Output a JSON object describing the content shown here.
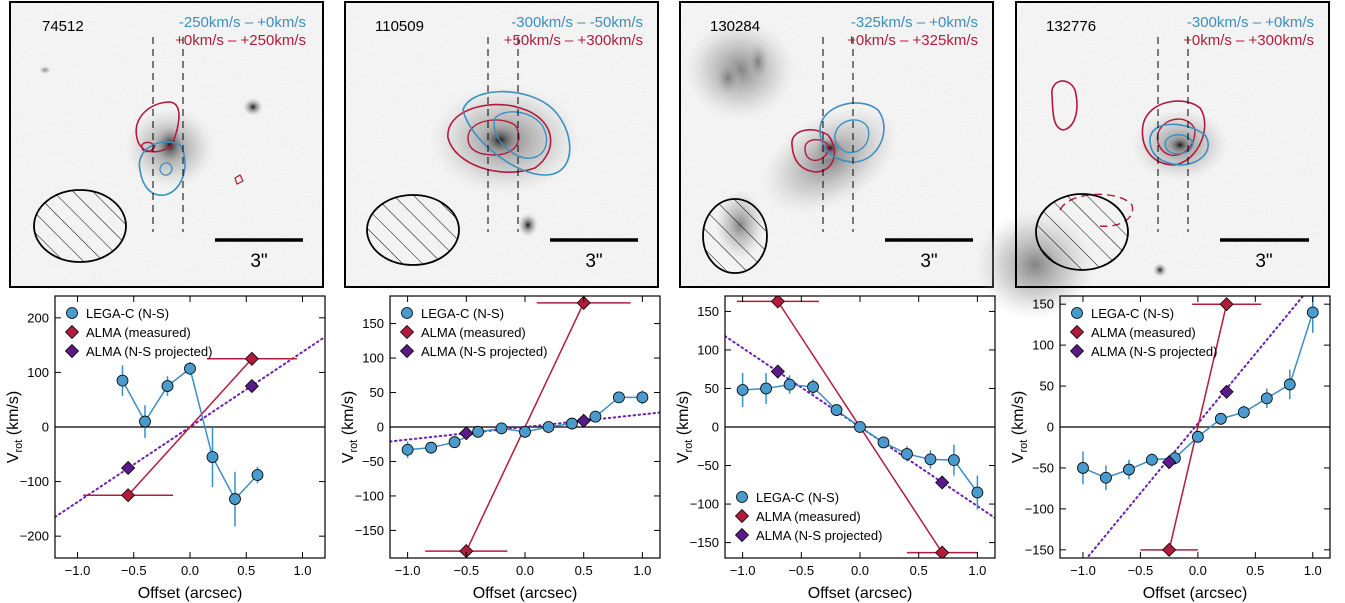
{
  "colors": {
    "blue": "#3b8fc2",
    "red": "#b31b3c",
    "purple": "#5b1a8c",
    "dotted": "#6a1fb5",
    "marker_blue": "#4a9bcd"
  },
  "chart_data": [
    {
      "type": "line",
      "galaxy_id": "74512",
      "velocity_ranges": [
        "-250km/s – +0km/s",
        "+0km/s – +250km/s"
      ],
      "scale_bar_label": "3\"",
      "xlabel": "Offset (arcsec)",
      "ylabel_main": "V",
      "ylabel_sub": "rot",
      "ylabel_unit": " (km/s)",
      "xlim": [
        -1.2,
        1.2
      ],
      "ylim": [
        -240,
        240
      ],
      "xticks": [
        -1.0,
        -0.5,
        0.0,
        0.5,
        1.0
      ],
      "xtick_labels": [
        "−1.0",
        "−0.5",
        "0.0",
        "0.5",
        "1.0"
      ],
      "yticks": [
        -200,
        -100,
        0,
        100,
        200
      ],
      "ytick_labels": [
        "−200",
        "−100",
        "0",
        "100",
        "200"
      ],
      "legend": {
        "position": "top-left",
        "entries": [
          "LEGA-C (N-S)",
          "ALMA (measured)",
          "ALMA (N-S projected)"
        ]
      },
      "series": [
        {
          "name": "LEGA-C (N-S)",
          "x": [
            -0.6,
            -0.4,
            -0.2,
            0.0,
            0.2,
            0.4,
            0.6
          ],
          "y": [
            85,
            10,
            75,
            107,
            -55,
            -132,
            -88
          ],
          "yerr": [
            28,
            30,
            18,
            12,
            55,
            50,
            15
          ]
        },
        {
          "name": "ALMA (measured)",
          "x": [
            -0.55,
            0.55
          ],
          "y": [
            -125,
            125
          ],
          "xerr": [
            0.4,
            0.4
          ]
        },
        {
          "name": "ALMA (N-S projected)",
          "x": [
            -0.55,
            0.55
          ],
          "y": [
            -75,
            75
          ]
        }
      ],
      "fit_line": {
        "x": [
          -1.2,
          1.2
        ],
        "y": [
          -165,
          165
        ]
      }
    },
    {
      "type": "line",
      "galaxy_id": "110509",
      "velocity_ranges": [
        "-300km/s – -50km/s",
        "+50km/s – +300km/s"
      ],
      "scale_bar_label": "3\"",
      "xlabel": "Offset (arcsec)",
      "ylabel_main": "V",
      "ylabel_sub": "rot",
      "ylabel_unit": " (km/s)",
      "xlim": [
        -1.15,
        1.15
      ],
      "ylim": [
        -190,
        190
      ],
      "xticks": [
        -1.0,
        -0.5,
        0.0,
        0.5,
        1.0
      ],
      "xtick_labels": [
        "−1.0",
        "−0.5",
        "0.0",
        "0.5",
        "1.0"
      ],
      "yticks": [
        -150,
        -100,
        -50,
        0,
        50,
        100,
        150
      ],
      "ytick_labels": [
        "−150",
        "−100",
        "−50",
        "0",
        "50",
        "100",
        "150"
      ],
      "legend": {
        "position": "top-left",
        "entries": [
          "LEGA-C (N-S)",
          "ALMA (measured)",
          "ALMA (N-S projected)"
        ]
      },
      "series": [
        {
          "name": "LEGA-C (N-S)",
          "x": [
            -1.0,
            -0.8,
            -0.6,
            -0.4,
            -0.2,
            0.0,
            0.2,
            0.4,
            0.6,
            0.8,
            1.0
          ],
          "y": [
            -33,
            -30,
            -22,
            -7,
            -2,
            -7,
            0,
            5,
            15,
            43,
            43
          ],
          "yerr": [
            12,
            8,
            6,
            5,
            4,
            6,
            4,
            5,
            6,
            8,
            10
          ]
        },
        {
          "name": "ALMA (measured)",
          "x": [
            -0.5,
            0.5
          ],
          "y": [
            -180,
            180
          ],
          "xerr": [
            0.35,
            0.4
          ]
        },
        {
          "name": "ALMA (N-S projected)",
          "x": [
            -0.5,
            0.5
          ],
          "y": [
            -9,
            9
          ]
        }
      ],
      "fit_line": {
        "x": [
          -1.15,
          1.15
        ],
        "y": [
          -21,
          21
        ]
      }
    },
    {
      "type": "line",
      "galaxy_id": "130284",
      "velocity_ranges": [
        "-325km/s – +0km/s",
        "+0km/s – +325km/s"
      ],
      "scale_bar_label": "3\"",
      "xlabel": "Offset (arcsec)",
      "ylabel_main": "V",
      "ylabel_sub": "rot",
      "ylabel_unit": " (km/s)",
      "xlim": [
        -1.15,
        1.15
      ],
      "ylim": [
        -170,
        170
      ],
      "xticks": [
        -1.0,
        -0.5,
        0.0,
        0.5,
        1.0
      ],
      "xtick_labels": [
        "−1.0",
        "−0.5",
        "0.0",
        "0.5",
        "1.0"
      ],
      "yticks": [
        -150,
        -100,
        -50,
        0,
        50,
        100,
        150
      ],
      "ytick_labels": [
        "−150",
        "−100",
        "−50",
        "0",
        "50",
        "100",
        "150"
      ],
      "legend": {
        "position": "bottom-left",
        "entries": [
          "LEGA-C (N-S)",
          "ALMA (measured)",
          "ALMA (N-S projected)"
        ]
      },
      "series": [
        {
          "name": "LEGA-C (N-S)",
          "x": [
            -1.0,
            -0.8,
            -0.6,
            -0.4,
            -0.2,
            0.0,
            0.2,
            0.4,
            0.6,
            0.8,
            1.0
          ],
          "y": [
            48,
            50,
            55,
            52,
            22,
            0,
            -20,
            -35,
            -42,
            -43,
            -85
          ],
          "yerr": [
            22,
            20,
            12,
            10,
            6,
            5,
            6,
            10,
            12,
            20,
            22
          ]
        },
        {
          "name": "ALMA (measured)",
          "x": [
            -0.7,
            0.7
          ],
          "y": [
            163,
            -163
          ],
          "xerr": [
            0.35,
            0.3
          ]
        },
        {
          "name": "ALMA (N-S projected)",
          "x": [
            -0.7,
            0.7
          ],
          "y": [
            72,
            -72
          ]
        }
      ],
      "fit_line": {
        "x": [
          -1.15,
          1.15
        ],
        "y": [
          118,
          -118
        ]
      }
    },
    {
      "type": "line",
      "galaxy_id": "132776",
      "velocity_ranges": [
        "-300km/s – +0km/s",
        "+0km/s – +300km/s"
      ],
      "scale_bar_label": "3\"",
      "xlabel": "Offset (arcsec)",
      "ylabel_main": "V",
      "ylabel_sub": "rot",
      "ylabel_unit": " (km/s)",
      "xlim": [
        -1.2,
        1.15
      ],
      "ylim": [
        -160,
        160
      ],
      "xticks": [
        -1.0,
        -0.5,
        0.0,
        0.5,
        1.0
      ],
      "xtick_labels": [
        "−1.0",
        "−0.5",
        "0.0",
        "0.5",
        "1.0"
      ],
      "yticks": [
        -150,
        -100,
        -50,
        0,
        50,
        100,
        150
      ],
      "ytick_labels": [
        "−150",
        "−100",
        "−50",
        "0",
        "50",
        "100",
        "150"
      ],
      "legend": {
        "position": "top-left",
        "entries": [
          "LEGA-C (N-S)",
          "ALMA (measured)",
          "ALMA (N-S projected)"
        ]
      },
      "series": [
        {
          "name": "LEGA-C (N-S)",
          "x": [
            -1.0,
            -0.8,
            -0.6,
            -0.4,
            -0.2,
            0.0,
            0.2,
            0.4,
            0.6,
            0.8,
            1.0
          ],
          "y": [
            -50,
            -62,
            -52,
            -40,
            -38,
            -12,
            10,
            18,
            35,
            52,
            140
          ],
          "yerr": [
            20,
            15,
            12,
            8,
            8,
            6,
            6,
            8,
            12,
            18,
            25
          ]
        },
        {
          "name": "ALMA (measured)",
          "x": [
            -0.25,
            0.25
          ],
          "y": [
            -150,
            150
          ],
          "xerr": [
            0.25,
            0.3
          ]
        },
        {
          "name": "ALMA (N-S projected)",
          "x": [
            -0.25,
            0.25
          ],
          "y": [
            -43,
            43
          ]
        }
      ],
      "fit_line": {
        "x": [
          -1.2,
          1.15
        ],
        "y": [
          -200,
          200
        ]
      }
    }
  ]
}
